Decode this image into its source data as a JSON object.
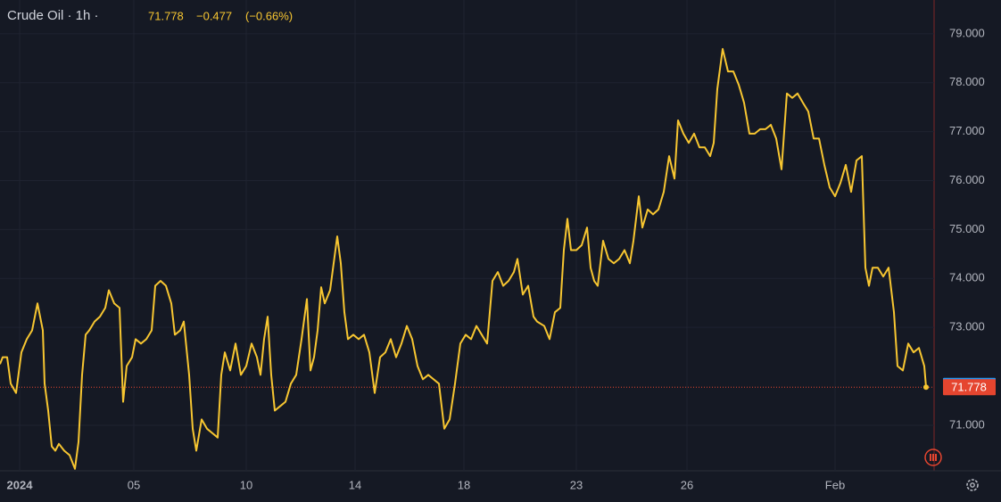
{
  "chart_data": {
    "type": "line",
    "symbol": "Crude Oil · 1h ·",
    "last": "71.778",
    "change": "−0.477",
    "change_pct": "(−0.66%)",
    "line_color": "#f7c631",
    "grid": true,
    "xlim": [
      0,
      523.5
    ],
    "ylim": [
      70.07,
      79.69
    ],
    "xticks": [
      {
        "value": 11,
        "label": "2024"
      },
      {
        "value": 75,
        "label": "05"
      },
      {
        "value": 138,
        "label": "10"
      },
      {
        "value": 199,
        "label": "14"
      },
      {
        "value": 260,
        "label": "18"
      },
      {
        "value": 323,
        "label": "23"
      },
      {
        "value": 385,
        "label": "26"
      },
      {
        "value": 468,
        "label": "Feb"
      }
    ],
    "yticks": [
      {
        "value": 71,
        "label": "71.000"
      },
      {
        "value": 73,
        "label": "73.000"
      },
      {
        "value": 74,
        "label": "74.000"
      },
      {
        "value": 75,
        "label": "75.000"
      },
      {
        "value": 76,
        "label": "76.000"
      },
      {
        "value": 77,
        "label": "77.000"
      },
      {
        "value": 78,
        "label": "78.000"
      },
      {
        "value": 79,
        "label": "79.000"
      }
    ],
    "markers": [
      {
        "value": 71.806,
        "color": "#2196f3"
      },
      {
        "value": 71.778,
        "color": "#e5452f"
      }
    ],
    "x": [
      0,
      1.5,
      4,
      6,
      9,
      12,
      15,
      18,
      21,
      24,
      25,
      27,
      29,
      31,
      33,
      36,
      39,
      42,
      44,
      46,
      48,
      50,
      53,
      56,
      59,
      61,
      64,
      67,
      69,
      71,
      74,
      76,
      79,
      82,
      85,
      87,
      90,
      93,
      96,
      98,
      101,
      103,
      106,
      108,
      110,
      113,
      116,
      119,
      122,
      124,
      126,
      129,
      132,
      135,
      138,
      141,
      144,
      146,
      148,
      150,
      152,
      154,
      157,
      160,
      163,
      166,
      169,
      172,
      174,
      176,
      178,
      180,
      182,
      185,
      187,
      189,
      191,
      193,
      195,
      198,
      201,
      204,
      207,
      210,
      213,
      216,
      219,
      222,
      225,
      228,
      231,
      234,
      237,
      240,
      243,
      246,
      249,
      252,
      255,
      258,
      261,
      264,
      267,
      270,
      273,
      276,
      279,
      282,
      285,
      288,
      290,
      293,
      296,
      299,
      301,
      305,
      308,
      311,
      314,
      316,
      318,
      320,
      323,
      326,
      329,
      331,
      333,
      335,
      338,
      341,
      344,
      347,
      350,
      353,
      355,
      358,
      360,
      363,
      366,
      369,
      372,
      375,
      378,
      380,
      383,
      386,
      389,
      392,
      395,
      398,
      400,
      402,
      405,
      408,
      411,
      414,
      417,
      420,
      423,
      426,
      429,
      432,
      435,
      438,
      441,
      444,
      447,
      450,
      453,
      456,
      459,
      462,
      465,
      468,
      471,
      474,
      477,
      480,
      483,
      485,
      487,
      489,
      492,
      495,
      498,
      501,
      503,
      506,
      509,
      512,
      515,
      518,
      519
    ],
    "values": [
      72.25,
      72.39,
      72.39,
      71.85,
      71.66,
      72.49,
      72.76,
      72.94,
      73.49,
      72.94,
      71.85,
      71.3,
      70.57,
      70.48,
      70.62,
      70.48,
      70.39,
      70.11,
      70.66,
      72.03,
      72.85,
      72.94,
      73.12,
      73.22,
      73.4,
      73.76,
      73.49,
      73.4,
      71.48,
      72.21,
      72.39,
      72.76,
      72.67,
      72.76,
      72.94,
      73.85,
      73.95,
      73.85,
      73.49,
      72.85,
      72.94,
      73.12,
      72.03,
      70.93,
      70.48,
      71.12,
      70.93,
      70.84,
      70.75,
      72.03,
      72.49,
      72.12,
      72.67,
      72.03,
      72.21,
      72.67,
      72.39,
      72.03,
      72.76,
      73.22,
      72.03,
      71.3,
      71.39,
      71.48,
      71.85,
      72.03,
      72.76,
      73.58,
      72.12,
      72.39,
      72.94,
      73.82,
      73.49,
      73.76,
      74.31,
      74.86,
      74.31,
      73.31,
      72.76,
      72.85,
      72.76,
      72.85,
      72.49,
      71.66,
      72.39,
      72.49,
      72.76,
      72.39,
      72.67,
      73.03,
      72.76,
      72.21,
      71.94,
      72.03,
      71.94,
      71.85,
      70.93,
      71.12,
      71.85,
      72.67,
      72.85,
      72.76,
      73.03,
      72.85,
      72.67,
      73.95,
      74.13,
      73.85,
      73.95,
      74.13,
      74.4,
      73.67,
      73.85,
      73.22,
      73.12,
      73.03,
      72.76,
      73.31,
      73.4,
      74.58,
      75.22,
      74.58,
      74.58,
      74.68,
      75.04,
      74.22,
      73.95,
      73.85,
      74.77,
      74.4,
      74.31,
      74.4,
      74.58,
      74.31,
      74.77,
      75.68,
      75.04,
      75.41,
      75.31,
      75.41,
      75.77,
      76.5,
      76.04,
      77.23,
      76.96,
      76.77,
      76.96,
      76.68,
      76.68,
      76.5,
      76.77,
      77.87,
      78.69,
      78.23,
      78.23,
      77.96,
      77.59,
      76.96,
      76.96,
      77.05,
      77.05,
      77.14,
      76.86,
      76.23,
      77.78,
      77.69,
      77.78,
      77.59,
      77.41,
      76.86,
      76.86,
      76.32,
      75.86,
      75.68,
      75.95,
      76.32,
      75.77,
      76.41,
      76.5,
      74.22,
      73.85,
      74.22,
      74.22,
      74.04,
      74.22,
      73.31,
      72.21,
      72.12,
      72.67,
      72.49,
      72.58,
      72.21,
      71.778
    ]
  }
}
